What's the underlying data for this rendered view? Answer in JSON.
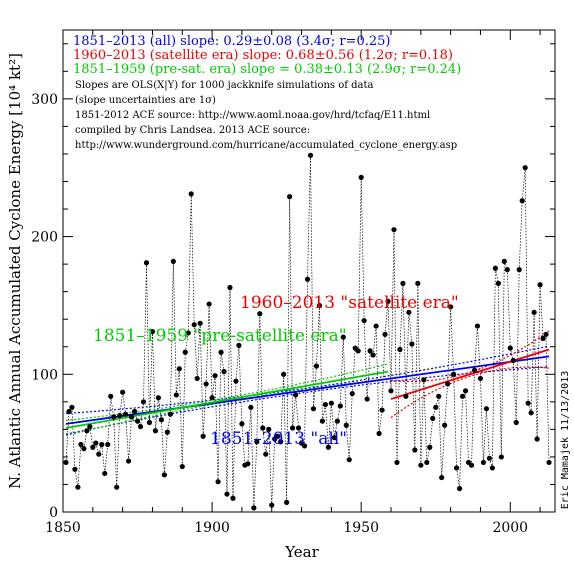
{
  "chart_data": {
    "type": "scatter",
    "xlabel": "Year",
    "ylabel": "N. Atlantic Annual Accumulated Cyclone Energy [10⁴ kt²]",
    "xlim": [
      1850,
      2015
    ],
    "ylim": [
      0,
      350
    ],
    "xticks": [
      1850,
      1900,
      1950,
      2000
    ],
    "yticks": [
      0,
      100,
      200,
      300
    ],
    "grid": false,
    "slope_legend": [
      {
        "text": "1851–2013 (all) slope: 0.29±0.08 (3.4σ; r=0.25)",
        "color": "#0000ee"
      },
      {
        "text": "1960–2013 (satellite era) slope: 0.68±0.56 (1.2σ; r=0.18)",
        "color": "#ee0000"
      },
      {
        "text": "1851–1959 (pre-sat. era) slope = 0.38±0.13 (2.9σ; r=0.24)",
        "color": "#00cc00"
      }
    ],
    "notes": [
      "Slopes are OLS(X|Y) for 1000 jackknife simulations of data",
      "(slope uncertainties are 1σ)",
      "1851-2012 ACE source: http://www.aoml.noaa.gov/hrd/tcfaq/E11.html",
      "compiled by Chris Landsea. 2013 ACE source:",
      "http://www.wunderground.com/hurricane/accumulated_cyclone_energy.asp"
    ],
    "annotations": [
      {
        "text": "1960–2013 \"satellite era\"",
        "color": "#ee0000"
      },
      {
        "text": "1851–1959 \"pre-satellite era\"",
        "color": "#00cc00"
      },
      {
        "text": "1851–2013 \"all\"",
        "color": "#0000ee"
      }
    ],
    "credit": "Eric Mamajek 11/13/2013",
    "series": [
      {
        "name": "ACE",
        "color": "#000000",
        "x": [
          1851,
          1852,
          1853,
          1854,
          1855,
          1856,
          1857,
          1858,
          1859,
          1860,
          1861,
          1862,
          1863,
          1864,
          1865,
          1866,
          1867,
          1868,
          1869,
          1870,
          1871,
          1872,
          1873,
          1874,
          1875,
          1876,
          1877,
          1878,
          1879,
          1880,
          1881,
          1882,
          1883,
          1884,
          1885,
          1886,
          1887,
          1888,
          1889,
          1890,
          1891,
          1892,
          1893,
          1894,
          1895,
          1896,
          1897,
          1898,
          1899,
          1900,
          1901,
          1902,
          1903,
          1904,
          1905,
          1906,
          1907,
          1908,
          1909,
          1910,
          1911,
          1912,
          1913,
          1914,
          1915,
          1916,
          1917,
          1918,
          1919,
          1920,
          1921,
          1922,
          1923,
          1924,
          1925,
          1926,
          1927,
          1928,
          1929,
          1930,
          1931,
          1932,
          1933,
          1934,
          1935,
          1936,
          1937,
          1938,
          1939,
          1940,
          1941,
          1942,
          1943,
          1944,
          1945,
          1946,
          1947,
          1948,
          1949,
          1950,
          1951,
          1952,
          1953,
          1954,
          1955,
          1956,
          1957,
          1958,
          1959,
          1960,
          1961,
          1962,
          1963,
          1964,
          1965,
          1966,
          1967,
          1968,
          1969,
          1970,
          1971,
          1972,
          1973,
          1974,
          1975,
          1976,
          1977,
          1978,
          1979,
          1980,
          1981,
          1982,
          1983,
          1984,
          1985,
          1986,
          1987,
          1988,
          1989,
          1990,
          1991,
          1992,
          1993,
          1994,
          1995,
          1996,
          1997,
          1998,
          1999,
          2000,
          2001,
          2002,
          2003,
          2004,
          2005,
          2006,
          2007,
          2008,
          2009,
          2010,
          2011,
          2012,
          2013
        ],
        "y": [
          36,
          73,
          76,
          31,
          18,
          49,
          46,
          59,
          62,
          47,
          50,
          42,
          49,
          28,
          49,
          84,
          69,
          18,
          70,
          87,
          71,
          37,
          69,
          73,
          66,
          62,
          80,
          181,
          65,
          131,
          59,
          83,
          67,
          27,
          58,
          71,
          182,
          85,
          104,
          33,
          116,
          130,
          231,
          136,
          97,
          137,
          55,
          93,
          151,
          83,
          99,
          22,
          116,
          102,
          13,
          163,
          10,
          95,
          121,
          64,
          34,
          35,
          76,
          3,
          51,
          144,
          61,
          42,
          60,
          5,
          53,
          55,
          51,
          100,
          7,
          229,
          61,
          85,
          61,
          50,
          48,
          169,
          259,
          75,
          106,
          150,
          66,
          78,
          47,
          79,
          54,
          66,
          77,
          127,
          63,
          38,
          86,
          119,
          117,
          243,
          139,
          82,
          117,
          114,
          135,
          57,
          74,
          129,
          153,
          88,
          205,
          36,
          118,
          166,
          84,
          145,
          122,
          45,
          166,
          34,
          96,
          36,
          47,
          68,
          76,
          84,
          25,
          63,
          93,
          149,
          100,
          32,
          17,
          84,
          88,
          36,
          34,
          103,
          135,
          97,
          36,
          75,
          39,
          32,
          177,
          166,
          40,
          182,
          176,
          119,
          110,
          65,
          176,
          226,
          250,
          79,
          72,
          145,
          53,
          165,
          126,
          129,
          36
        ]
      },
      {
        "name": "1851–2013 \"all\"",
        "type": "line",
        "color": "#0000ee",
        "x": [
          1851,
          2013
        ],
        "y": [
          64,
          113
        ]
      },
      {
        "name": "1851–1959 \"pre-satellite era\"",
        "type": "line",
        "color": "#00cc00",
        "x": [
          1851,
          1959
        ],
        "y": [
          61,
          102
        ]
      },
      {
        "name": "1960–2013 \"satellite era\"",
        "type": "line",
        "color": "#ee0000",
        "x": [
          1960,
          2013
        ],
        "y": [
          82,
          118
        ]
      }
    ]
  }
}
